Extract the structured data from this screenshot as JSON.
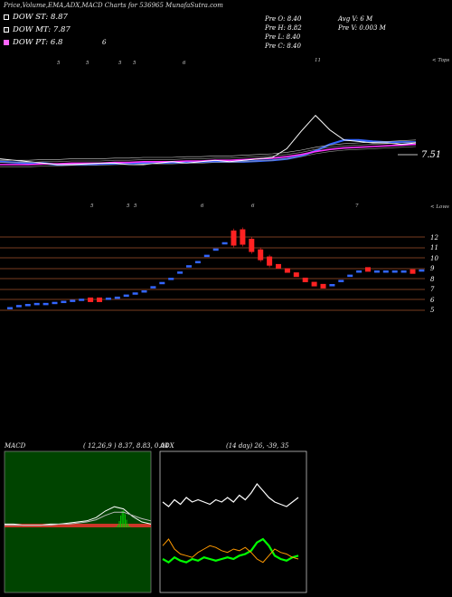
{
  "title": "Price,Volume,EMA,ADX,MACD Charts for 536965 MunafaSutra.com",
  "dow": {
    "st": "DOW ST: 8.87",
    "mt": "DOW MT: 7.87",
    "pt": "DOW PT: 6.8",
    "pt_extra": "6"
  },
  "info": {
    "open": "Pre   O: 8.40",
    "high": "Pre   H: 8.82",
    "low": "Pre   L: 8.40",
    "close": "Pre   C: 8.40",
    "avg": "Avg V: 6   M",
    "volume": "Pre   V: 0.003 M"
  },
  "top_label": "< Tops",
  "low_label": "< Lows",
  "last_price_label": "7.51",
  "top_marks": [
    "5",
    "5",
    "5",
    "5",
    "6",
    "11"
  ],
  "low_marks": [
    "5",
    "5",
    "5",
    "6",
    "6",
    "7"
  ],
  "price_levels": [
    "12",
    "11",
    "10",
    "9",
    "8",
    "7",
    "6",
    "5"
  ],
  "macd_label": "MACD",
  "macd_params": "( 12,26,9 ) 8.37,  8.83,  0.04",
  "adx_label": "ADX",
  "adx_params": "(14  day) 26,  -39,  35",
  "colors": {
    "background": "#000000",
    "ema_fast": "#3366ff",
    "ema_slow": "#ff33ff",
    "up_candle": "#3366ff",
    "down_candle": "#ff2222",
    "level_line": "#a0522d",
    "macd_bg": "#004400",
    "histogram": "#00cc00",
    "adx_green": "#00ff00",
    "adx_orange": "#ff9900"
  },
  "chart_data": [
    {
      "type": "line",
      "name": "price-ema-panel",
      "series": [
        {
          "values": [
            6.2,
            6.15,
            6.1,
            6.1,
            6.0,
            6.0,
            6.0,
            6.05,
            6.05,
            6.1,
            6.1,
            6.1,
            6.15,
            6.15,
            6.2,
            6.2,
            6.2,
            6.2,
            6.25,
            6.3,
            6.4,
            6.6,
            6.95,
            7.4,
            7.7,
            7.7,
            7.6,
            7.55,
            7.55,
            7.55
          ]
        },
        {
          "values": [
            6.0,
            6.0,
            6.0,
            6.05,
            6.05,
            6.1,
            6.1,
            6.1,
            6.15,
            6.15,
            6.2,
            6.2,
            6.2,
            6.25,
            6.25,
            6.3,
            6.3,
            6.35,
            6.4,
            6.45,
            6.55,
            6.7,
            6.9,
            7.05,
            7.15,
            7.2,
            7.25,
            7.3,
            7.35,
            7.4
          ]
        },
        {
          "values": [
            6.4,
            6.3,
            6.2,
            6.1,
            6.0,
            6.0,
            6.05,
            6.1,
            6.1,
            6.0,
            6.0,
            6.1,
            6.2,
            6.1,
            6.2,
            6.3,
            6.2,
            6.3,
            6.4,
            6.5,
            7.1,
            8.3,
            9.4,
            8.4,
            7.7,
            7.6,
            7.5,
            7.5,
            7.4,
            7.5
          ]
        }
      ]
    },
    {
      "type": "bar",
      "name": "candles",
      "x": [
        0,
        1,
        2,
        3,
        4,
        5,
        6,
        7,
        8,
        9,
        10,
        11,
        12,
        13,
        14,
        15,
        16,
        17,
        18,
        19,
        20,
        21,
        22,
        23,
        24,
        25,
        26,
        27,
        28,
        29,
        30,
        31,
        32,
        33,
        34,
        35,
        36,
        37,
        38,
        39,
        40,
        41,
        42,
        43,
        44,
        45,
        46
      ],
      "values": [
        5.2,
        5.4,
        5.5,
        5.6,
        5.6,
        5.7,
        5.8,
        5.9,
        6.0,
        6.0,
        6.0,
        6.1,
        6.2,
        6.4,
        6.6,
        6.8,
        7.2,
        7.6,
        8.0,
        8.6,
        9.2,
        9.6,
        10.2,
        10.8,
        11.4,
        11.9,
        12.0,
        11.2,
        10.3,
        9.7,
        9.2,
        8.8,
        8.4,
        7.9,
        7.5,
        7.3,
        7.4,
        7.8,
        8.3,
        8.7,
        8.9,
        8.7,
        8.7,
        8.7,
        8.7,
        8.7,
        8.8
      ],
      "down": [
        false,
        false,
        false,
        false,
        false,
        false,
        false,
        false,
        false,
        true,
        true,
        false,
        false,
        false,
        false,
        false,
        false,
        false,
        false,
        false,
        false,
        false,
        false,
        false,
        false,
        true,
        true,
        true,
        true,
        true,
        true,
        true,
        true,
        true,
        true,
        true,
        false,
        false,
        false,
        false,
        true,
        false,
        false,
        false,
        false,
        true,
        false
      ]
    },
    {
      "type": "line",
      "name": "macd",
      "series": [
        {
          "values": [
            0.03,
            0.03,
            0.02,
            0.02,
            0.02,
            0.03,
            0.03,
            0.04,
            0.05,
            0.06,
            0.09,
            0.15,
            0.19,
            0.17,
            0.1,
            0.05,
            0.03
          ]
        },
        {
          "values": [
            0.02,
            0.02,
            0.02,
            0.02,
            0.02,
            0.02,
            0.03,
            0.03,
            0.04,
            0.05,
            0.07,
            0.11,
            0.14,
            0.14,
            0.11,
            0.08,
            0.06
          ]
        }
      ]
    },
    {
      "type": "line",
      "name": "adx",
      "series": [
        {
          "values": [
            30,
            28,
            31,
            29,
            32,
            30,
            31,
            30,
            29,
            31,
            30,
            32,
            30,
            33,
            31,
            34,
            38,
            35,
            32,
            30,
            29,
            28,
            30,
            32
          ]
        },
        {
          "values": [
            12,
            10,
            13,
            11,
            10,
            12,
            11,
            13,
            12,
            11,
            12,
            13,
            12,
            14,
            15,
            17,
            22,
            24,
            20,
            14,
            12,
            11,
            13,
            14
          ]
        },
        {
          "values": [
            20,
            24,
            18,
            15,
            14,
            13,
            16,
            18,
            20,
            19,
            17,
            16,
            18,
            17,
            19,
            16,
            12,
            10,
            14,
            18,
            16,
            15,
            13,
            12
          ]
        }
      ]
    }
  ]
}
